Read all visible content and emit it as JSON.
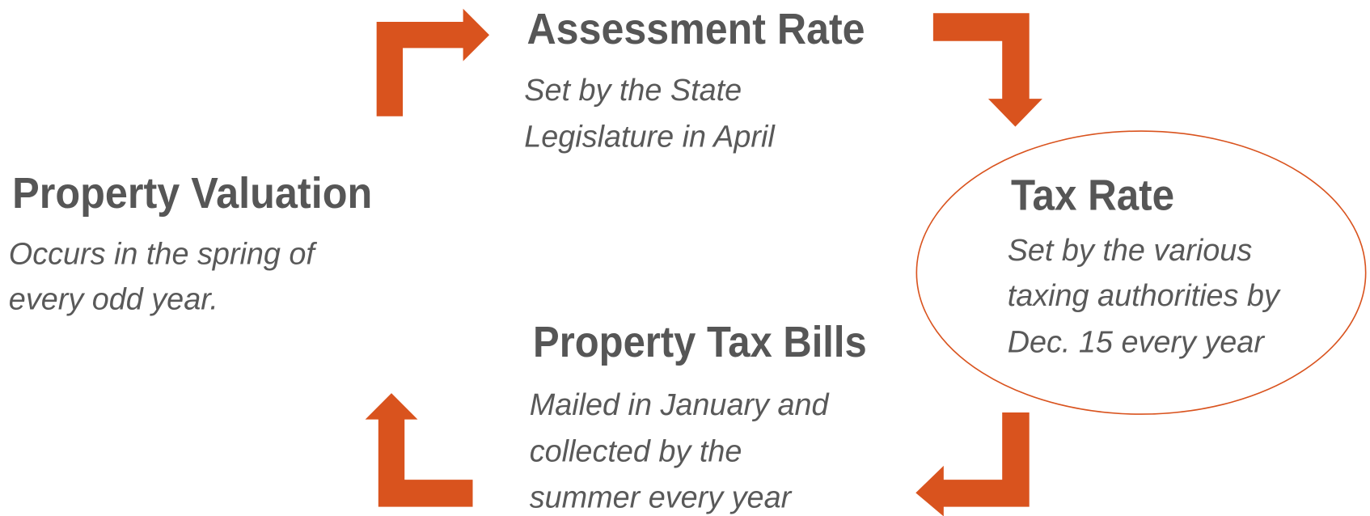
{
  "nodes": [
    {
      "title": "Assessment Rate",
      "description": [
        "Set by the State",
        "Legislature in April"
      ]
    },
    {
      "title": "Tax Rate",
      "description": [
        "Set by the various",
        "taxing authorities by",
        "Dec. 15 every year"
      ]
    },
    {
      "title": "Property Tax Bills",
      "description": [
        "Mailed in January and",
        "collected by the",
        "summer every year"
      ]
    },
    {
      "title": "Property Valuation",
      "description": [
        "Occurs in the spring of",
        "every odd year."
      ]
    }
  ]
}
